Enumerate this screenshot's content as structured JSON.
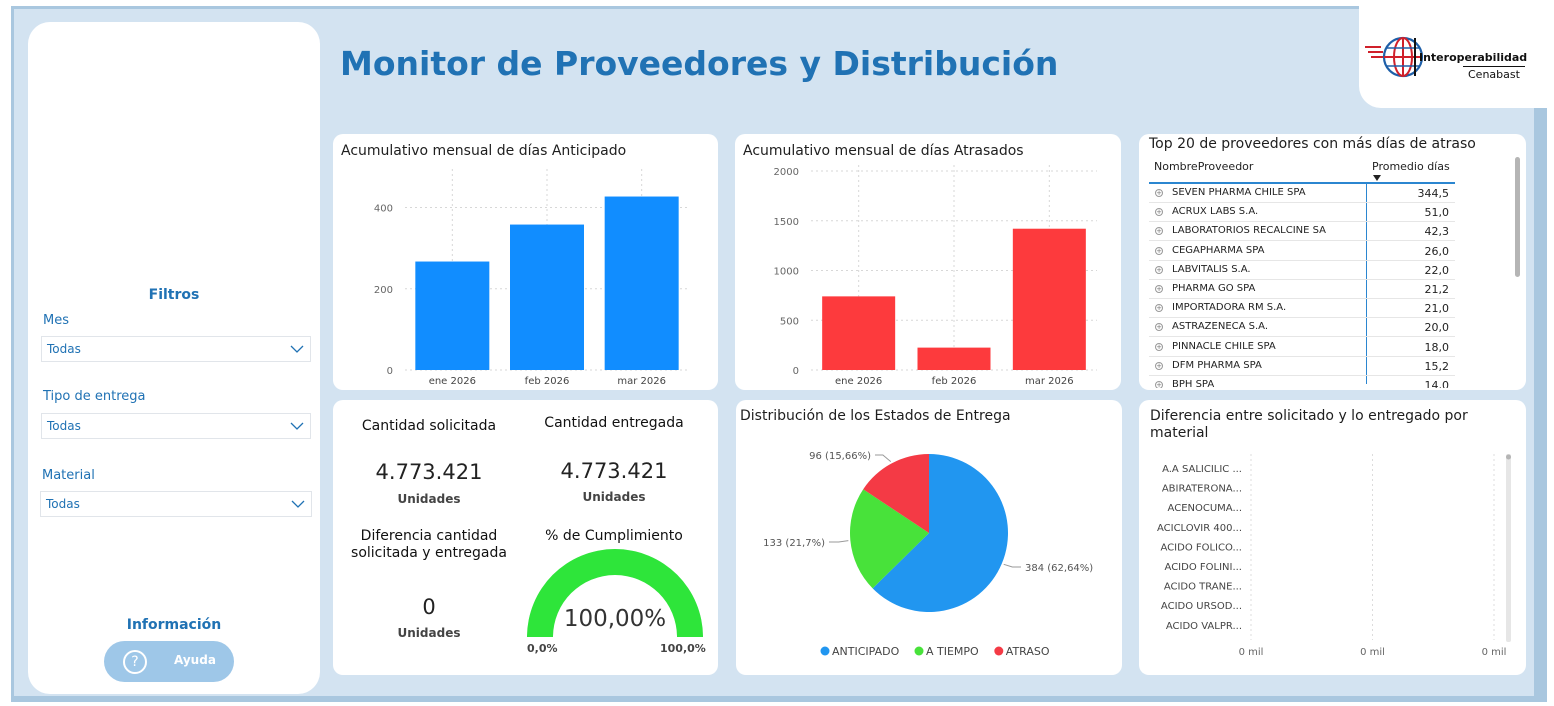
{
  "header": {
    "title": "Monitor de Proveedores y Distribución",
    "logo_text_top": "Interoperabilidad",
    "logo_text_bottom": "Cenabast"
  },
  "sidebar": {
    "filters_heading": "Filtros",
    "filters": [
      {
        "label": "Mes",
        "value": "Todas"
      },
      {
        "label": "Tipo de entrega",
        "value": "Todas"
      },
      {
        "label": "Material",
        "value": "Todas"
      }
    ],
    "info_heading": "Información",
    "help_button": "Ayuda",
    "help_icon": "question-icon"
  },
  "chart_data": [
    {
      "type": "bar",
      "title": "Acumulativo mensual de días Anticipado",
      "categories": [
        "ene 2026",
        "feb 2026",
        "mar 2026"
      ],
      "values": [
        267,
        358,
        427
      ],
      "yticks": [
        "0",
        "200",
        "400"
      ],
      "ylim": [
        0,
        480
      ],
      "color": "#118dff"
    },
    {
      "type": "bar",
      "title": "Acumulativo mensual de días Atrasados",
      "categories": [
        "ene 2026",
        "feb 2026",
        "mar 2026"
      ],
      "values": [
        740,
        225,
        1420
      ],
      "yticks": [
        "0",
        "500",
        "1000",
        "1500",
        "2000"
      ],
      "ylim": [
        0,
        2000
      ],
      "color": "#fd3a3d"
    },
    {
      "type": "pie",
      "title": "Distribución de los Estados de Entrega",
      "slices": [
        {
          "name": "ANTICIPADO",
          "value": 384,
          "label": "384 (62,64%)",
          "color": "#2196f0"
        },
        {
          "name": "A TIEMPO",
          "value": 133,
          "label": "133 (21,7%)",
          "color": "#48e23a"
        },
        {
          "name": "ATRASO",
          "value": 96,
          "label": "96 (15,66%)",
          "color": "#f43a45"
        }
      ]
    },
    {
      "type": "bar",
      "title": "Diferencia entre solicitado y lo entregado por material",
      "categories": [
        "A.A SALICILIC ...",
        "ABIRATERONA...",
        "ACENOCUMA...",
        "ACICLOVIR 400...",
        "ACIDO FOLICO...",
        "ACIDO FOLINI...",
        "ACIDO TRANE...",
        "ACIDO URSOD...",
        "ACIDO VALPR..."
      ],
      "values": [
        0,
        0,
        0,
        0,
        0,
        0,
        0,
        0,
        0
      ],
      "xticks": [
        "0 mil",
        "0 mil",
        "0 mil"
      ]
    }
  ],
  "top20": {
    "title": "Top 20 de proveedores con más días de atraso",
    "col_name": "NombreProveedor",
    "col_value": "Promedio días",
    "rows": [
      {
        "name": "SEVEN PHARMA CHILE SPA",
        "value": "344,5"
      },
      {
        "name": "ACRUX LABS S.A.",
        "value": "51,0"
      },
      {
        "name": "LABORATORIOS RECALCINE SA",
        "value": "42,3"
      },
      {
        "name": "CEGAPHARMA SPA",
        "value": "26,0"
      },
      {
        "name": "LABVITALIS S.A.",
        "value": "22,0"
      },
      {
        "name": "PHARMA GO SPA",
        "value": "21,2"
      },
      {
        "name": "IMPORTADORA RM S.A.",
        "value": "21,0"
      },
      {
        "name": "ASTRAZENECA S.A.",
        "value": "20,0"
      },
      {
        "name": "PINNACLE CHILE SPA",
        "value": "18,0"
      },
      {
        "name": "DFM PHARMA SPA",
        "value": "15,2"
      },
      {
        "name": "BPH SPA",
        "value": "14,0"
      }
    ]
  },
  "kpis": {
    "requested_label": "Cantidad solicitada",
    "requested_value": "4.773.421",
    "requested_unit": "Unidades",
    "delivered_label": "Cantidad entregada",
    "delivered_value": "4.773.421",
    "delivered_unit": "Unidades",
    "diff_label_1": "Diferencia cantidad",
    "diff_label_2": "solicitada y entregada",
    "diff_value": "0",
    "diff_unit": "Unidades",
    "compliance_label": "% de Cumplimiento",
    "compliance_value": "100,00%",
    "compliance_fraction": 1.0,
    "gauge_min": "0,0%",
    "gauge_max": "100,0%",
    "gauge_color": "#2ee53a"
  }
}
